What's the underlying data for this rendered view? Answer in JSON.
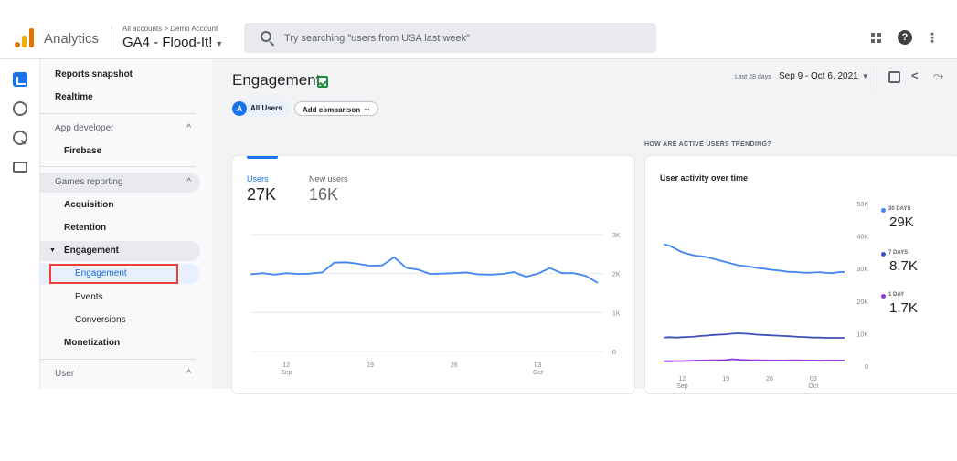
{
  "app": {
    "name": "Analytics"
  },
  "account": {
    "crumb": "All accounts > Demo Account",
    "property": "GA4 - Flood-It!"
  },
  "search": {
    "placeholder": "Try searching \"users from USA last week\""
  },
  "icons": {
    "logo": "analytics-logo",
    "apps": "apps-grid-icon",
    "help": "help-icon",
    "more": "more-vert-icon",
    "help_glyph": "?",
    "more_glyph": "⋮",
    "share_glyph": "<",
    "insights_glyph": "⤳"
  },
  "nav": {
    "reports_snapshot": "Reports snapshot",
    "realtime": "Realtime",
    "app_developer": "App developer",
    "firebase": "Firebase",
    "games_reporting": "Games reporting",
    "acquisition": "Acquisition",
    "retention": "Retention",
    "engagement": "Engagement",
    "engagement_sub": "Engagement",
    "events": "Events",
    "conversions": "Conversions",
    "monetization": "Monetization",
    "user": "User",
    "chevron_up": "^",
    "expand_tri": "▼"
  },
  "header": {
    "title": "Engagement",
    "chip_badge": "A",
    "chip_all_users": "All Users",
    "add_comparison": "Add comparison",
    "add_plus": "+",
    "date_preset": "Last 28 days",
    "date_range": "Sep 9 - Oct 6, 2021"
  },
  "left_card": {
    "users_label": "Users",
    "users_value": "27K",
    "new_users_label": "New users",
    "new_users_value": "16K"
  },
  "right_card": {
    "section_label": "HOW ARE ACTIVE USERS TRENDING?",
    "title": "User activity over time",
    "legend": [
      {
        "label": "30 DAYS",
        "value": "29K",
        "color": "#4285f4"
      },
      {
        "label": "7 DAYS",
        "value": "8.7K",
        "color": "#3f51b5"
      },
      {
        "label": "1 DAY",
        "value": "1.7K",
        "color": "#9334e6"
      }
    ]
  },
  "chart_data": [
    {
      "type": "line",
      "title": "",
      "x_ticks": [
        {
          "label": "12",
          "sub": "Sep",
          "day": 3
        },
        {
          "label": "19",
          "sub": "",
          "day": 10
        },
        {
          "label": "26",
          "sub": "",
          "day": 17
        },
        {
          "label": "03",
          "sub": "Oct",
          "day": 24
        }
      ],
      "y_ticks": [
        "3K",
        "2K",
        "1K",
        "0"
      ],
      "ylim": [
        0,
        3000
      ],
      "grid": true,
      "series": [
        {
          "color": "#4285f4",
          "values": [
            1980,
            2010,
            1970,
            2010,
            1990,
            2000,
            2030,
            2280,
            2290,
            2250,
            2200,
            2210,
            2420,
            2150,
            2100,
            1990,
            2000,
            2010,
            2030,
            1980,
            1970,
            1990,
            2040,
            1920,
            2000,
            2140,
            2010,
            2010,
            1940,
            1760
          ]
        }
      ]
    },
    {
      "type": "line",
      "title": "",
      "x_ticks": [
        {
          "label": "12",
          "sub": "Sep",
          "day": 3
        },
        {
          "label": "19",
          "sub": "",
          "day": 10
        },
        {
          "label": "26",
          "sub": "",
          "day": 17
        },
        {
          "label": "03",
          "sub": "Oct",
          "day": 24
        }
      ],
      "y_ticks": [
        "50K",
        "40K",
        "30K",
        "20K",
        "10K",
        "0"
      ],
      "ylim": [
        0,
        50000
      ],
      "grid": false,
      "series": [
        {
          "name": "30 DAYS",
          "color": "#4285f4",
          "values": [
            37500,
            37000,
            36000,
            35000,
            34500,
            34000,
            33800,
            33500,
            33000,
            32500,
            32000,
            31500,
            31000,
            30800,
            30500,
            30200,
            30000,
            29700,
            29500,
            29300,
            29000,
            29000,
            28800,
            28700,
            28800,
            28900,
            28700,
            28600,
            28900,
            29000
          ]
        },
        {
          "name": "7 DAYS",
          "color": "#3f51b5",
          "values": [
            8800,
            8900,
            8800,
            8900,
            9000,
            9100,
            9300,
            9400,
            9600,
            9700,
            9800,
            10000,
            10100,
            10000,
            9900,
            9700,
            9600,
            9500,
            9400,
            9300,
            9200,
            9100,
            9000,
            8900,
            8800,
            8800,
            8700,
            8700,
            8700,
            8700
          ]
        },
        {
          "name": "1 DAY",
          "color": "#9334e6",
          "values": [
            1500,
            1500,
            1550,
            1550,
            1600,
            1650,
            1700,
            1750,
            1800,
            1800,
            1850,
            2100,
            1900,
            1850,
            1800,
            1800,
            1750,
            1750,
            1700,
            1700,
            1750,
            1800,
            1750,
            1700,
            1700,
            1650,
            1700,
            1700,
            1700,
            1700
          ]
        }
      ]
    }
  ]
}
